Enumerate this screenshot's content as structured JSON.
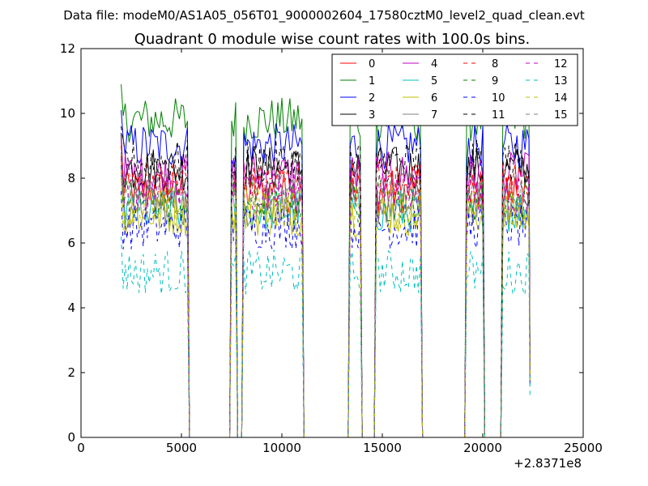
{
  "chart_data": {
    "type": "line",
    "suptitle": "Data file: modeM0/AS1A05_056T01_9000002604_17580cztM0_level2_quad_clean.evt",
    "title": "Quadrant 0 module wise count rates with 100.0s bins.",
    "xlabel": "",
    "ylabel": "",
    "x_offset_label": "+2.8371e8",
    "xlim": [
      0,
      25000
    ],
    "ylim": [
      0,
      12
    ],
    "xticks": [
      0,
      5000,
      10000,
      15000,
      20000,
      25000
    ],
    "xtick_labels": [
      "0",
      "5000",
      "10000",
      "15000",
      "20000",
      "25000"
    ],
    "yticks": [
      0,
      2,
      4,
      6,
      8,
      10,
      12
    ],
    "ytick_labels": [
      "0",
      "2",
      "4",
      "6",
      "8",
      "10",
      "12"
    ],
    "grid": false,
    "legend_position": "top-right",
    "x": [
      2000,
      3000,
      4000,
      5000,
      5300,
      5500,
      7300,
      7500,
      7700,
      7900,
      8100,
      8300,
      9000,
      10000,
      11000,
      11200,
      13200,
      13400,
      13900,
      14100,
      14500,
      14700,
      15500,
      16500,
      16900,
      17100,
      19000,
      19200,
      20000,
      20200,
      20800,
      21000,
      21700,
      22300
    ],
    "segments": [
      [
        2000,
        5300
      ],
      [
        7500,
        7700
      ],
      [
        8100,
        11000
      ],
      [
        13400,
        13900
      ],
      [
        14700,
        16900
      ],
      [
        19200,
        20000
      ],
      [
        21000,
        22300
      ]
    ],
    "series": [
      {
        "name": "0",
        "color": "#ff0000",
        "dash": "solid",
        "level": 7.6
      },
      {
        "name": "1",
        "color": "#008000",
        "dash": "solid",
        "level": 9.8
      },
      {
        "name": "2",
        "color": "#0000ff",
        "dash": "solid",
        "level": 9.0
      },
      {
        "name": "3",
        "color": "#000000",
        "dash": "solid",
        "level": 8.3
      },
      {
        "name": "4",
        "color": "#bf00bf",
        "dash": "solid",
        "level": 8.1
      },
      {
        "name": "5",
        "color": "#00bfbf",
        "dash": "solid",
        "level": 7.0
      },
      {
        "name": "6",
        "color": "#bfbf00",
        "dash": "solid",
        "level": 6.9
      },
      {
        "name": "7",
        "color": "#808080",
        "dash": "solid",
        "level": 7.2
      },
      {
        "name": "8",
        "color": "#ff0000",
        "dash": "dashed",
        "level": 7.9
      },
      {
        "name": "9",
        "color": "#008000",
        "dash": "dashed",
        "level": 7.3
      },
      {
        "name": "10",
        "color": "#0000ff",
        "dash": "dashed",
        "level": 6.5
      },
      {
        "name": "11",
        "color": "#000000",
        "dash": "dashed",
        "level": 8.5
      },
      {
        "name": "12",
        "color": "#bf00bf",
        "dash": "dashed",
        "level": 7.5
      },
      {
        "name": "13",
        "color": "#00bfbf",
        "dash": "dashed",
        "level": 5.1
      },
      {
        "name": "14",
        "color": "#bfbf00",
        "dash": "dashed",
        "level": 7.1
      },
      {
        "name": "15",
        "color": "#808080",
        "dash": "dashed",
        "level": 7.7
      }
    ],
    "legend_columns": 4
  }
}
